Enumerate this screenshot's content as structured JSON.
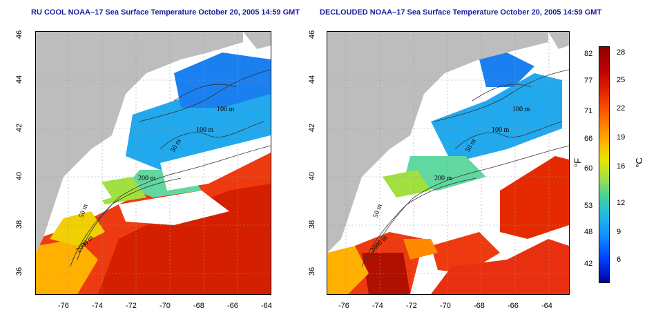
{
  "titles": {
    "left": "RU COOL NOAA–17 Sea Surface Temperature October 20, 2005 14:59 GMT",
    "right": "DECLOUDED NOAA–17 Sea Surface Temperature October 20, 2005 14:59 GMT"
  },
  "axes": {
    "x_ticks": [
      "-76",
      "-74",
      "-72",
      "-70",
      "-68",
      "-66",
      "-64"
    ],
    "y_ticks": [
      "46",
      "44",
      "42",
      "40",
      "38",
      "36"
    ]
  },
  "contours": {
    "left": [
      "100 m",
      "100 m",
      "50 m",
      "200 m",
      "50 m",
      "2000 m"
    ],
    "right": [
      "100 m",
      "100 m",
      "50 m",
      "200 m",
      "50 m",
      "2000 m"
    ]
  },
  "colorbar": {
    "fahrenheit_ticks": [
      "82",
      "77",
      "71",
      "66",
      "60",
      "53",
      "48",
      "42"
    ],
    "celsius_ticks": [
      "28",
      "25",
      "22",
      "19",
      "16",
      "12",
      "9",
      "6"
    ],
    "unit_f": "°F",
    "unit_c": "°C"
  },
  "colors": {
    "land": "#bdbdbd",
    "cloud": "#ffffff",
    "title": "#1a1aa0"
  }
}
